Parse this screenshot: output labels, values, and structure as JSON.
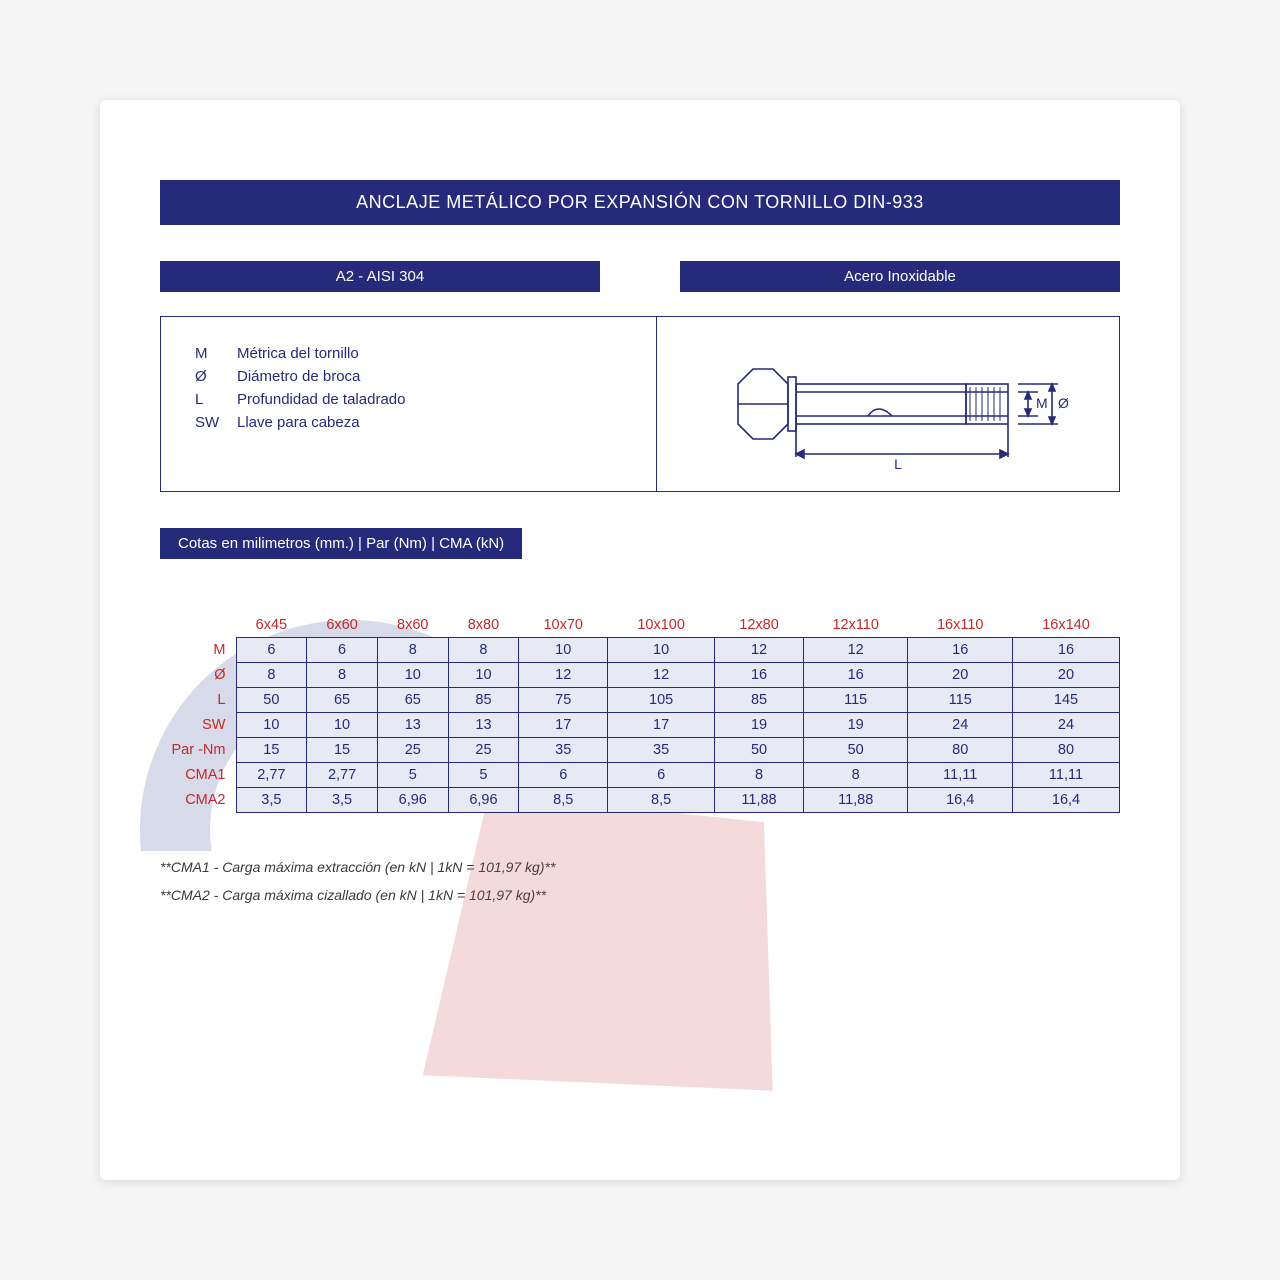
{
  "title": "ANCLAJE METÁLICO POR EXPANSIÓN CON TORNILLO DIN-933",
  "subheaders": {
    "left": "A2 - AISI 304",
    "right": "Acero Inoxidable"
  },
  "legend": [
    {
      "sym": "M",
      "desc": "Métrica del tornillo"
    },
    {
      "sym": "Ø",
      "desc": "Diámetro de broca"
    },
    {
      "sym": "L",
      "desc": "Profundidad de taladrado"
    },
    {
      "sym": "SW",
      "desc": "Llave para cabeza"
    }
  ],
  "diagram_labels": {
    "M": "M",
    "O": "Ø",
    "L": "L"
  },
  "table_caption": "Cotas en milimetros (mm.) | Par (Nm) | CMA (kN)",
  "columns": [
    "6x45",
    "6x60",
    "8x60",
    "8x80",
    "10x70",
    "10x100",
    "12x80",
    "12x110",
    "16x110",
    "16x140"
  ],
  "rows": [
    {
      "label": "M",
      "values": [
        "6",
        "6",
        "8",
        "8",
        "10",
        "10",
        "12",
        "12",
        "16",
        "16"
      ]
    },
    {
      "label": "Ø",
      "values": [
        "8",
        "8",
        "10",
        "10",
        "12",
        "12",
        "16",
        "16",
        "20",
        "20"
      ]
    },
    {
      "label": "L",
      "values": [
        "50",
        "65",
        "65",
        "85",
        "75",
        "105",
        "85",
        "115",
        "115",
        "145"
      ]
    },
    {
      "label": "SW",
      "values": [
        "10",
        "10",
        "13",
        "13",
        "17",
        "17",
        "19",
        "19",
        "24",
        "24"
      ]
    },
    {
      "label": "Par -Nm",
      "values": [
        "15",
        "15",
        "25",
        "25",
        "35",
        "35",
        "50",
        "50",
        "80",
        "80"
      ]
    },
    {
      "label": "CMA1",
      "values": [
        "2,77",
        "2,77",
        "5",
        "5",
        "6",
        "6",
        "8",
        "8",
        "11,11",
        "11,11"
      ]
    },
    {
      "label": "CMA2",
      "values": [
        "3,5",
        "3,5",
        "6,96",
        "6,96",
        "8,5",
        "8,5",
        "11,88",
        "11,88",
        "16,4",
        "16,4"
      ]
    }
  ],
  "footnotes": [
    "**CMA1 - Carga máxima extracción (en kN | 1kN = 101,97 kg)**",
    "**CMA2 - Carga máxima cizallado  (en kN | 1kN = 101,97 kg)**"
  ],
  "colors": {
    "brand": "#262a7a",
    "accent_red": "#c62828",
    "cell_bg": "#e7eaf5",
    "text": "#262a7a"
  }
}
